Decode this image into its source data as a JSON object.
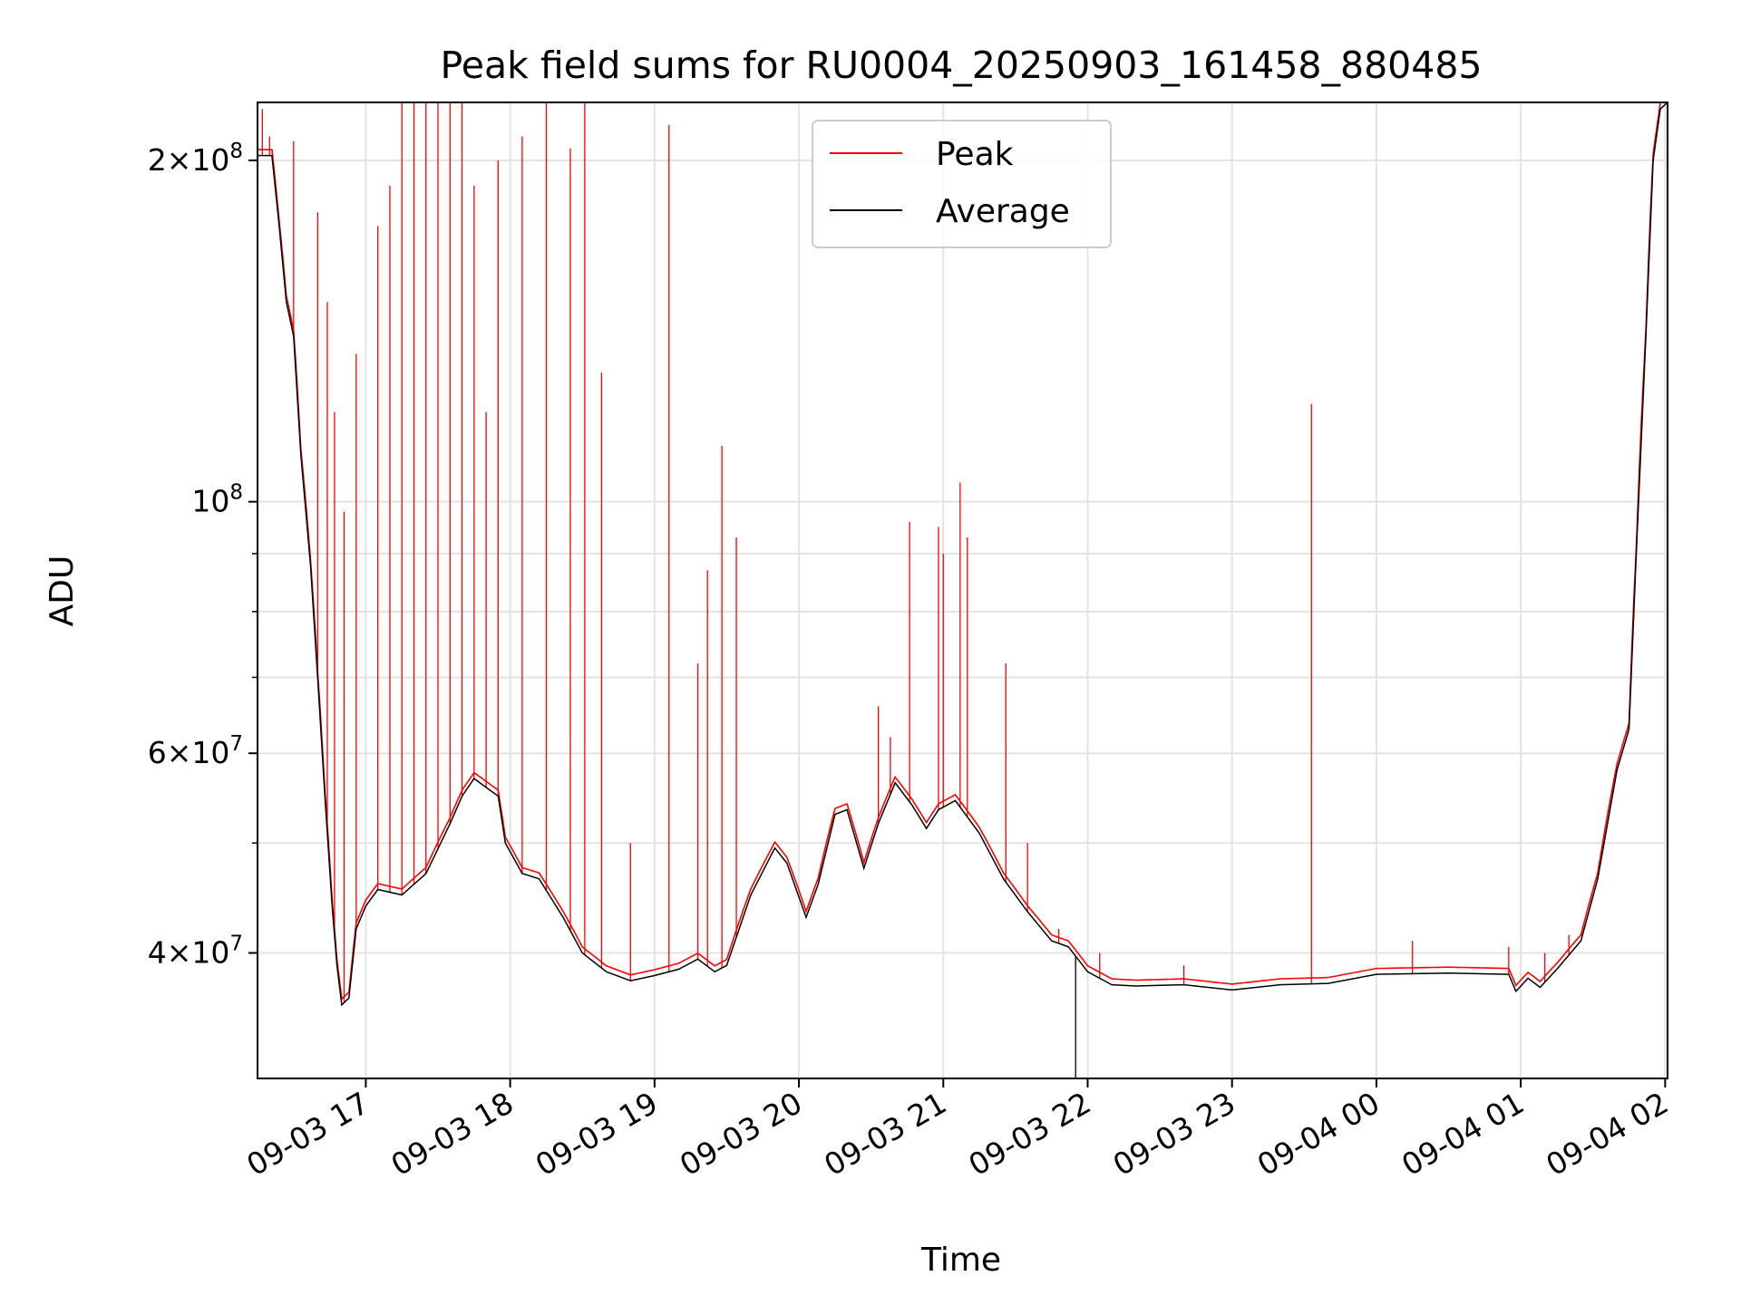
{
  "chart_data": {
    "type": "line",
    "title": "Peak field sums for RU0004_20250903_161458_880485",
    "xlabel": "Time",
    "ylabel": "ADU",
    "yscale": "log",
    "ylim": [
      31000000,
      225000000
    ],
    "xlim": [
      "2025-09-03 16:15",
      "2025-09-04 02:01"
    ],
    "grid": true,
    "legend_position": "top-center",
    "x_ticks": [
      "09-03 17",
      "09-03 18",
      "09-03 19",
      "09-03 20",
      "09-03 21",
      "09-03 22",
      "09-03 23",
      "09-04 00",
      "09-04 01",
      "09-04 02"
    ],
    "y_ticks": [
      {
        "value": 200000000,
        "mant": "2",
        "exp": "8"
      },
      {
        "value": 100000000,
        "mant": "",
        "exp": "8"
      },
      {
        "value": 60000000,
        "mant": "6",
        "exp": "7"
      },
      {
        "value": 40000000,
        "mant": "4",
        "exp": "7"
      }
    ],
    "series": [
      {
        "name": "Peak",
        "color": "#ff0000",
        "baseline_source": "Average",
        "spikes": [
          [
            "2025-09-03 16:17",
            222000000
          ],
          [
            "2025-09-03 16:20",
            210000000
          ],
          [
            "2025-09-03 16:30",
            208000000
          ],
          [
            "2025-09-03 16:40",
            180000000
          ],
          [
            "2025-09-03 16:44",
            150000000
          ],
          [
            "2025-09-03 16:47",
            120000000
          ],
          [
            "2025-09-03 16:51",
            98000000
          ],
          [
            "2025-09-03 16:56",
            135000000
          ],
          [
            "2025-09-03 17:05",
            175000000
          ],
          [
            "2025-09-03 17:10",
            190000000
          ],
          [
            "2025-09-03 17:15",
            225000000
          ],
          [
            "2025-09-03 17:20",
            225000000
          ],
          [
            "2025-09-03 17:25",
            225000000
          ],
          [
            "2025-09-03 17:30",
            225000000
          ],
          [
            "2025-09-03 17:35",
            225000000
          ],
          [
            "2025-09-03 17:40",
            225000000
          ],
          [
            "2025-09-03 17:45",
            190000000
          ],
          [
            "2025-09-03 17:50",
            120000000
          ],
          [
            "2025-09-03 17:55",
            200000000
          ],
          [
            "2025-09-03 18:05",
            210000000
          ],
          [
            "2025-09-03 18:15",
            225000000
          ],
          [
            "2025-09-03 18:25",
            205000000
          ],
          [
            "2025-09-03 18:31",
            225000000
          ],
          [
            "2025-09-03 18:38",
            130000000
          ],
          [
            "2025-09-03 18:50",
            50000000
          ],
          [
            "2025-09-03 19:06",
            215000000
          ],
          [
            "2025-09-03 19:18",
            72000000
          ],
          [
            "2025-09-03 19:22",
            87000000
          ],
          [
            "2025-09-03 19:28",
            112000000
          ],
          [
            "2025-09-03 19:34",
            93000000
          ],
          [
            "2025-09-03 20:33",
            66000000
          ],
          [
            "2025-09-03 20:38",
            62000000
          ],
          [
            "2025-09-03 20:46",
            96000000
          ],
          [
            "2025-09-03 20:58",
            95000000
          ],
          [
            "2025-09-03 21:00",
            90000000
          ],
          [
            "2025-09-03 21:07",
            104000000
          ],
          [
            "2025-09-03 21:10",
            93000000
          ],
          [
            "2025-09-03 21:26",
            72000000
          ],
          [
            "2025-09-03 21:35",
            50000000
          ],
          [
            "2025-09-03 21:48",
            42000000
          ],
          [
            "2025-09-03 22:05",
            40000000
          ],
          [
            "2025-09-03 22:40",
            39000000
          ],
          [
            "2025-09-03 23:33",
            122000000
          ],
          [
            "2025-09-04 00:15",
            41000000
          ],
          [
            "2025-09-04 00:55",
            40500000
          ],
          [
            "2025-09-04 01:10",
            40000000
          ],
          [
            "2025-09-04 01:20",
            41500000
          ]
        ]
      },
      {
        "name": "Average",
        "color": "#000000",
        "points": [
          [
            "2025-09-03 16:15",
            202000000
          ],
          [
            "2025-09-03 16:21",
            202000000
          ],
          [
            "2025-09-03 16:24",
            175000000
          ],
          [
            "2025-09-03 16:27",
            150000000
          ],
          [
            "2025-09-03 16:30",
            140000000
          ],
          [
            "2025-09-03 16:33",
            110000000
          ],
          [
            "2025-09-03 16:37",
            88000000
          ],
          [
            "2025-09-03 16:40",
            70000000
          ],
          [
            "2025-09-03 16:43",
            55000000
          ],
          [
            "2025-09-03 16:46",
            44000000
          ],
          [
            "2025-09-03 16:48",
            39000000
          ],
          [
            "2025-09-03 16:50",
            36000000
          ],
          [
            "2025-09-03 16:53",
            36500000
          ],
          [
            "2025-09-03 16:56",
            42000000
          ],
          [
            "2025-09-03 17:00",
            44000000
          ],
          [
            "2025-09-03 17:05",
            45500000
          ],
          [
            "2025-09-03 17:15",
            45000000
          ],
          [
            "2025-09-03 17:25",
            47000000
          ],
          [
            "2025-09-03 17:35",
            52000000
          ],
          [
            "2025-09-03 17:40",
            55000000
          ],
          [
            "2025-09-03 17:45",
            57000000
          ],
          [
            "2025-09-03 17:55",
            55000000
          ],
          [
            "2025-09-03 17:58",
            50000000
          ],
          [
            "2025-09-03 18:05",
            47000000
          ],
          [
            "2025-09-03 18:12",
            46500000
          ],
          [
            "2025-09-03 18:22",
            43000000
          ],
          [
            "2025-09-03 18:30",
            40000000
          ],
          [
            "2025-09-03 18:40",
            38500000
          ],
          [
            "2025-09-03 18:50",
            37800000
          ],
          [
            "2025-09-03 19:00",
            38200000
          ],
          [
            "2025-09-03 19:10",
            38700000
          ],
          [
            "2025-09-03 19:18",
            39500000
          ],
          [
            "2025-09-03 19:25",
            38500000
          ],
          [
            "2025-09-03 19:30",
            39000000
          ],
          [
            "2025-09-03 19:40",
            45000000
          ],
          [
            "2025-09-03 19:50",
            49500000
          ],
          [
            "2025-09-03 19:55",
            48000000
          ],
          [
            "2025-09-03 20:03",
            43000000
          ],
          [
            "2025-09-03 20:08",
            46000000
          ],
          [
            "2025-09-03 20:15",
            53000000
          ],
          [
            "2025-09-03 20:20",
            53500000
          ],
          [
            "2025-09-03 20:27",
            47500000
          ],
          [
            "2025-09-03 20:33",
            52000000
          ],
          [
            "2025-09-03 20:40",
            56500000
          ],
          [
            "2025-09-03 20:47",
            54000000
          ],
          [
            "2025-09-03 20:53",
            51500000
          ],
          [
            "2025-09-03 20:58",
            53500000
          ],
          [
            "2025-09-03 21:05",
            54500000
          ],
          [
            "2025-09-03 21:15",
            51000000
          ],
          [
            "2025-09-03 21:25",
            46500000
          ],
          [
            "2025-09-03 21:35",
            43500000
          ],
          [
            "2025-09-03 21:45",
            41000000
          ],
          [
            "2025-09-03 21:52",
            40500000
          ],
          [
            "2025-09-03 22:00",
            38500000
          ],
          [
            "2025-09-03 22:10",
            37500000
          ],
          [
            "2025-09-03 22:20",
            37400000
          ],
          [
            "2025-09-03 22:40",
            37500000
          ],
          [
            "2025-09-03 23:00",
            37100000
          ],
          [
            "2025-09-03 23:20",
            37500000
          ],
          [
            "2025-09-03 23:40",
            37600000
          ],
          [
            "2025-09-04 00:00",
            38300000
          ],
          [
            "2025-09-04 00:30",
            38400000
          ],
          [
            "2025-09-04 00:55",
            38300000
          ],
          [
            "2025-09-04 00:58",
            37000000
          ],
          [
            "2025-09-04 01:03",
            38000000
          ],
          [
            "2025-09-04 01:08",
            37300000
          ],
          [
            "2025-09-04 01:15",
            38700000
          ],
          [
            "2025-09-04 01:25",
            41000000
          ],
          [
            "2025-09-04 01:32",
            46500000
          ],
          [
            "2025-09-04 01:40",
            58000000
          ],
          [
            "2025-09-04 01:45",
            63000000
          ],
          [
            "2025-09-04 01:48",
            90000000
          ],
          [
            "2025-09-04 01:52",
            140000000
          ],
          [
            "2025-09-04 01:55",
            200000000
          ],
          [
            "2025-09-04 01:58",
            222000000
          ],
          [
            "2025-09-04 02:01",
            225000000
          ]
        ],
        "dip": [
          "2025-09-03 21:55",
          31000000
        ]
      }
    ]
  }
}
